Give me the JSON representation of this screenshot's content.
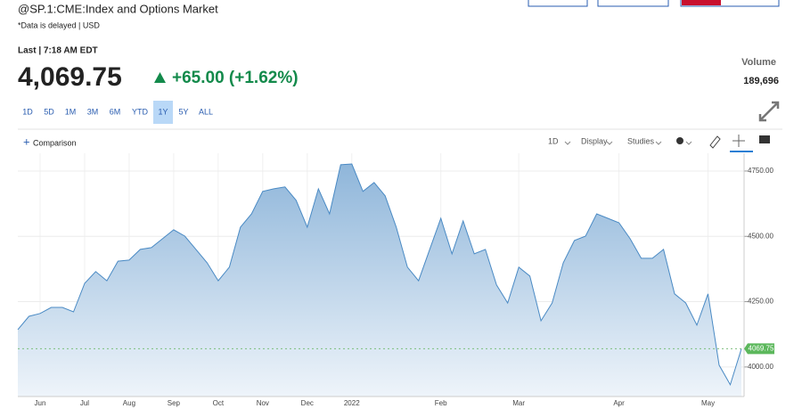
{
  "header": {
    "title": "@SP.1:CME:Index and Options Market",
    "subtitle": "*Data is delayed | USD"
  },
  "quote": {
    "last": "Last | 7:18 AM EDT",
    "price": "4,069.75",
    "change": "+65.00 (+1.62%)",
    "volume_label": "Volume",
    "volume": "189,696"
  },
  "ranges": {
    "items": [
      "1D",
      "5D",
      "1M",
      "3M",
      "6M",
      "YTD",
      "1Y",
      "5Y",
      "ALL"
    ],
    "selected": "1Y"
  },
  "toolbar": {
    "comparison": "Comparison",
    "interval": "1D",
    "display": "Display",
    "studies": "Studies"
  },
  "chart_data": {
    "type": "area",
    "color": "#4a8ac4",
    "categories": [
      null,
      null,
      "Jun",
      null,
      null,
      null,
      "Jul",
      null,
      null,
      null,
      "Aug",
      null,
      null,
      null,
      "Sep",
      null,
      null,
      null,
      "Oct",
      null,
      null,
      null,
      "Nov",
      null,
      null,
      null,
      "Dec",
      null,
      null,
      null,
      "2022",
      null,
      null,
      null,
      null,
      null,
      null,
      null,
      "Feb",
      null,
      null,
      null,
      null,
      null,
      null,
      "Mar",
      null,
      null,
      null,
      null,
      null,
      null,
      null,
      null,
      "Apr",
      null,
      null,
      null,
      null,
      null,
      null,
      null,
      "May",
      null,
      null,
      null
    ],
    "values": [
      4143,
      4194,
      4205,
      4228,
      4228,
      4211,
      4320,
      4365,
      4330,
      4405,
      4409,
      4450,
      4457,
      4491,
      4525,
      4501,
      4450,
      4399,
      4330,
      4382,
      4535,
      4586,
      4672,
      4682,
      4689,
      4638,
      4535,
      4682,
      4586,
      4774,
      4777,
      4672,
      4706,
      4655,
      4535,
      4382,
      4330,
      4450,
      4569,
      4433,
      4559,
      4433,
      4450,
      4314,
      4245,
      4382,
      4348,
      4177,
      4245,
      4399,
      4484,
      4501,
      4586,
      4569,
      4552,
      4491,
      4416,
      4416,
      4450,
      4280,
      4245,
      4160,
      4280,
      4007,
      3932,
      4069.75
    ],
    "ylim": [
      3887,
      4818
    ],
    "yticks": [
      {
        "value": 4000,
        "label": "4000.00"
      },
      {
        "value": 4250,
        "label": "4250.00"
      },
      {
        "value": 4500,
        "label": "4500.00"
      },
      {
        "value": 4750,
        "label": "4750.00"
      }
    ],
    "grid": true,
    "last_tag": {
      "value": 4069.75,
      "label": "4069.75"
    }
  }
}
